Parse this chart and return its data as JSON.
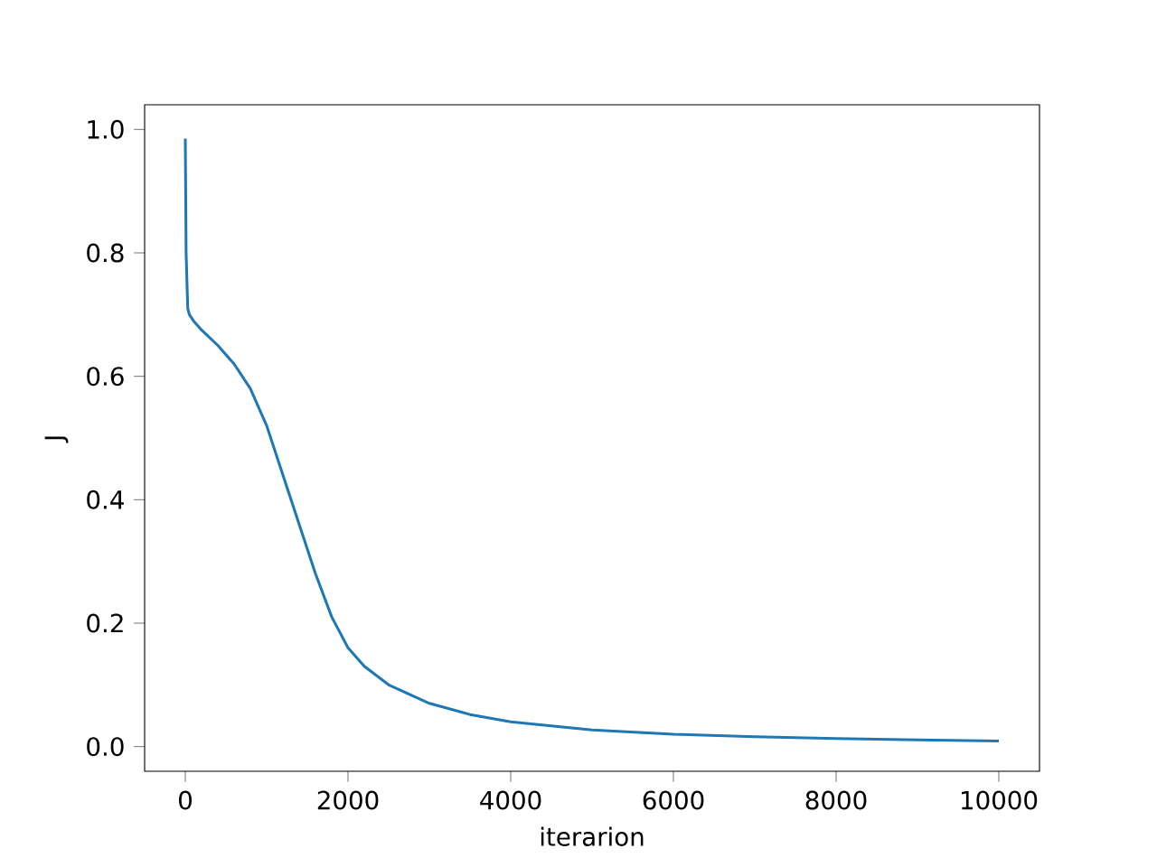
{
  "chart_data": {
    "type": "line",
    "xlabel": "iterarion",
    "ylabel": "J",
    "x": [
      0,
      10,
      30,
      50,
      100,
      200,
      400,
      600,
      800,
      1000,
      1200,
      1400,
      1600,
      1800,
      2000,
      2200,
      2500,
      3000,
      3500,
      4000,
      5000,
      6000,
      7000,
      8000,
      9000,
      10000
    ],
    "series": [
      {
        "color": "#1f77b4",
        "values": [
          0.985,
          0.8,
          0.71,
          0.7,
          0.69,
          0.675,
          0.65,
          0.62,
          0.58,
          0.52,
          0.44,
          0.36,
          0.28,
          0.21,
          0.16,
          0.13,
          0.1,
          0.07,
          0.052,
          0.04,
          0.027,
          0.02,
          0.016,
          0.013,
          0.011,
          0.009
        ]
      }
    ],
    "xlim": [
      -500,
      10500
    ],
    "ylim": [
      -0.04,
      1.04
    ],
    "xticks": [
      0,
      2000,
      4000,
      6000,
      8000,
      10000
    ],
    "yticks": [
      {
        "value": 0,
        "label": "0.0"
      },
      {
        "value": 0.2,
        "label": "0.2"
      },
      {
        "value": 0.4,
        "label": "0.4"
      },
      {
        "value": 0.6,
        "label": "0.6"
      },
      {
        "value": 0.8,
        "label": "0.8"
      },
      {
        "value": 1.0,
        "label": "1.0"
      }
    ],
    "grid": false
  }
}
